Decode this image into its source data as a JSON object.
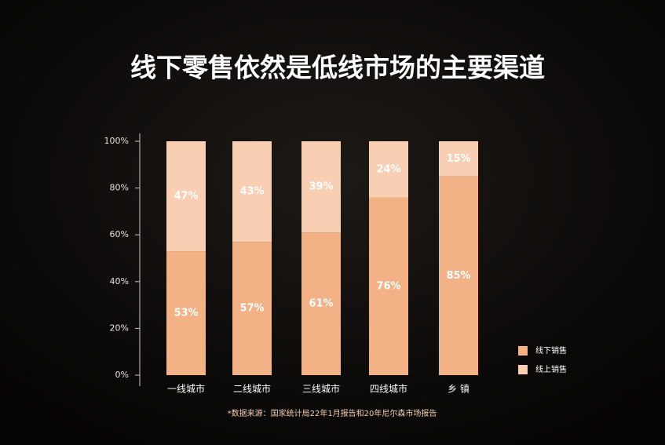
{
  "chart_data": {
    "type": "stacked-bar",
    "title": "线下零售依然是低线市场的主要渠道",
    "categories": [
      "一线城市",
      "二线城市",
      "三线城市",
      "四线城市",
      "乡 镇"
    ],
    "series": [
      {
        "name": "线下销售",
        "color": "#f2b286",
        "values": [
          53,
          57,
          61,
          76,
          85
        ],
        "value_labels": [
          "53%",
          "57%",
          "61%",
          "76%",
          "85%"
        ]
      },
      {
        "name": "线上销售",
        "color": "#f8cfb3",
        "values": [
          47,
          43,
          39,
          24,
          15
        ],
        "value_labels": [
          "47%",
          "43%",
          "39%",
          "24%",
          "15%"
        ]
      }
    ],
    "ylim": [
      0,
      100
    ],
    "yticks": [
      {
        "value": 0,
        "label": "0%"
      },
      {
        "value": 20,
        "label": "20%"
      },
      {
        "value": 40,
        "label": "40%"
      },
      {
        "value": 60,
        "label": "60%"
      },
      {
        "value": 80,
        "label": "80%"
      },
      {
        "value": 100,
        "label": "100%"
      }
    ],
    "source": "*数据来源：国家统计局22年1月报告和20年尼尔森市场报告"
  }
}
